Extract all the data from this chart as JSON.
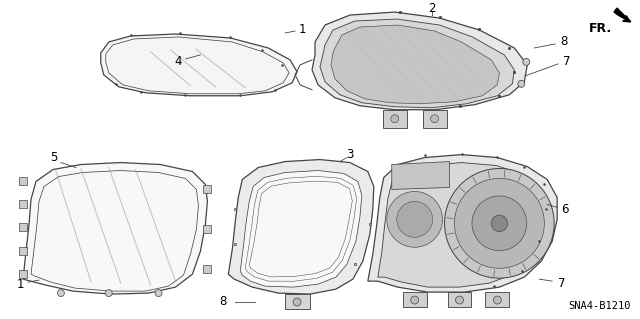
{
  "background_color": "#ffffff",
  "diagram_code": "SNA4-B1210",
  "fr_label": "FR.",
  "line_color": "#444444",
  "text_color": "#000000",
  "label_fontsize": 8.5,
  "code_fontsize": 7.5
}
